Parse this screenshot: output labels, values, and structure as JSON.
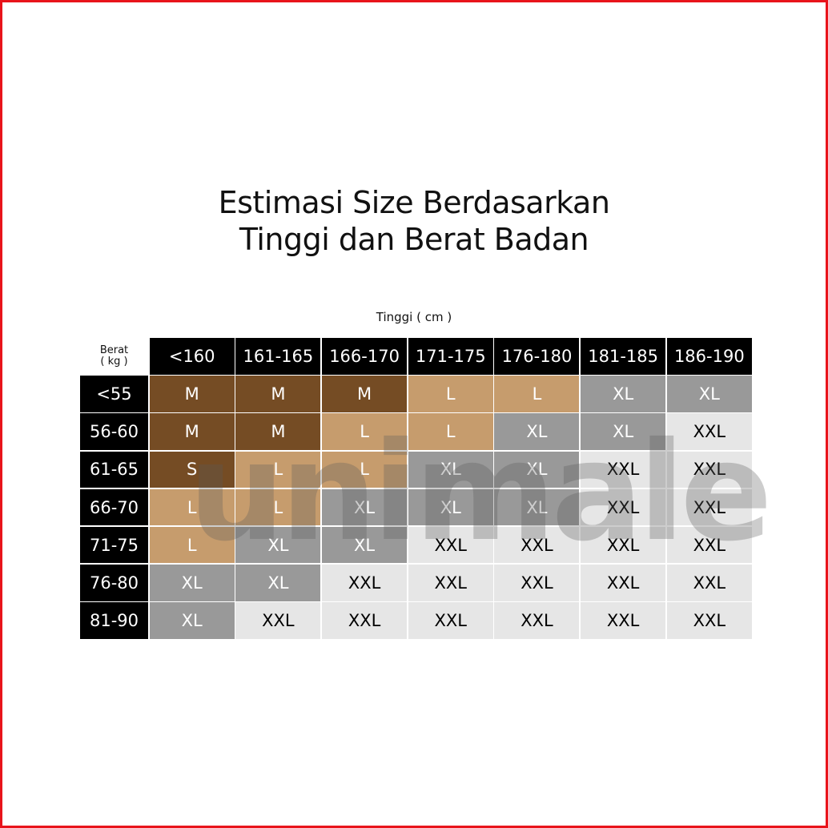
{
  "title_lines": [
    "Estimasi Size Berdasarkan",
    "Tinggi dan Berat Badan"
  ],
  "x_axis_label": "Tinggi ( cm )",
  "y_axis_label": [
    "Berat",
    "( kg )"
  ],
  "heights": [
    "<160",
    "161-165",
    "166-170",
    "171-175",
    "176-180",
    "181-185",
    "186-190"
  ],
  "weights": [
    "<55",
    "56-60",
    "61-65",
    "66-70",
    "71-75",
    "76-80",
    "81-90"
  ],
  "sizes": [
    [
      "M",
      "M",
      "M",
      "L",
      "L",
      "XL",
      "XL"
    ],
    [
      "M",
      "M",
      "L",
      "L",
      "XL",
      "XL",
      "XXL"
    ],
    [
      "S",
      "L",
      "L",
      "XL",
      "XL",
      "XXL",
      "XXL"
    ],
    [
      "L",
      "L",
      "XL",
      "XL",
      "XL",
      "XXL",
      "XXL"
    ],
    [
      "L",
      "XL",
      "XL",
      "XXL",
      "XXL",
      "XXL",
      "XXL"
    ],
    [
      "XL",
      "XL",
      "XXL",
      "XXL",
      "XXL",
      "XXL",
      "XXL"
    ],
    [
      "XL",
      "XXL",
      "XXL",
      "XXL",
      "XXL",
      "XXL",
      "XXL"
    ]
  ],
  "colors": {
    "S": "#754c24",
    "M": "#754c24",
    "L": "#c69c6d",
    "XL": "#999999",
    "XXL": "#e6e6e6",
    "header": "#000000",
    "border": "#e8141b"
  },
  "watermark": "unimale"
}
